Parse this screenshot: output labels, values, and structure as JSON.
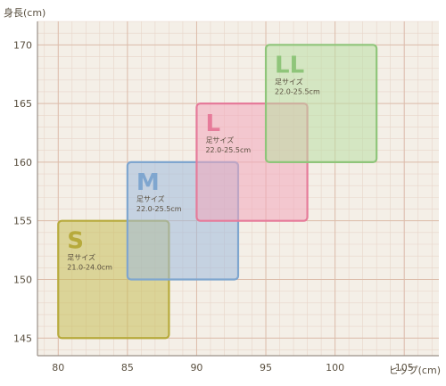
{
  "chart_data": {
    "type": "size-chart",
    "ylabel": "身長(cm)",
    "xlabel": "ヒップ(cm)",
    "xlim": [
      78.5,
      107.5
    ],
    "ylim": [
      143.5,
      172.0
    ],
    "x_ticks": [
      80,
      85,
      90,
      95,
      100,
      105
    ],
    "y_ticks": [
      145,
      150,
      155,
      160,
      165,
      170
    ],
    "grid": true,
    "boxes": [
      {
        "label": "S",
        "sub1": "足サイズ",
        "sub2": "21.0-24.0cm",
        "x": [
          80.0,
          88.0
        ],
        "y": [
          145.0,
          155.0
        ],
        "color": "#b7aa3c",
        "fill": "#c6bd58"
      },
      {
        "label": "M",
        "sub1": "足サイズ",
        "sub2": "22.0-25.5cm",
        "x": [
          85.0,
          93.0
        ],
        "y": [
          150.0,
          160.0
        ],
        "color": "#7fa6cf",
        "fill": "#9fb9dc"
      },
      {
        "label": "L",
        "sub1": "足サイズ",
        "sub2": "22.0-25.5cm",
        "x": [
          90.0,
          98.0
        ],
        "y": [
          155.0,
          165.0
        ],
        "color": "#e67b9a",
        "fill": "#f2a6bc"
      },
      {
        "label": "LL",
        "sub1": "足サイズ",
        "sub2": "22.0-25.5cm",
        "x": [
          95.0,
          103.0
        ],
        "y": [
          160.0,
          170.0
        ],
        "color": "#8fc57a",
        "fill": "#b9dea4"
      }
    ]
  }
}
